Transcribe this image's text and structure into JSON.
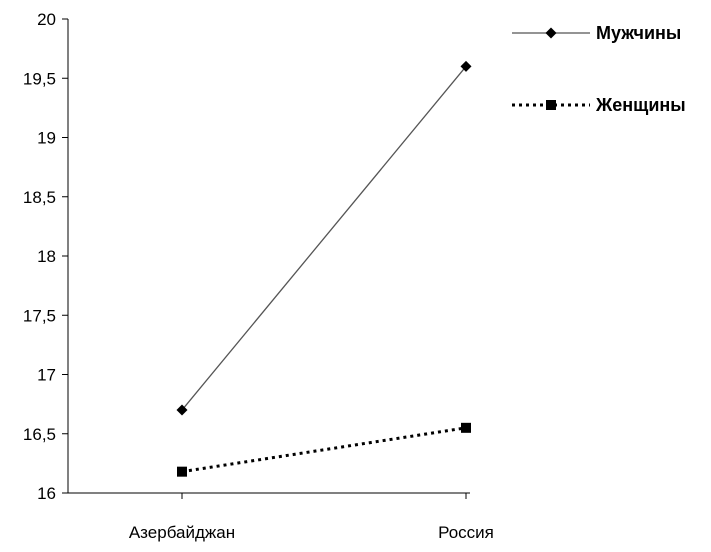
{
  "chart_data": {
    "type": "line",
    "title": "",
    "xlabel": "",
    "ylabel": "",
    "categories": [
      "Азербайджан",
      "Россия"
    ],
    "ylim": [
      16,
      20
    ],
    "ytick_step": 0.5,
    "ytick_labels": [
      "16",
      "16,5",
      "17",
      "17,5",
      "18",
      "18,5",
      "19",
      "19,5",
      "20"
    ],
    "grid": false,
    "legend_position": "top-right",
    "series": [
      {
        "name": "Мужчины",
        "values": [
          16.7,
          19.6
        ],
        "line_style": "solid",
        "marker": "diamond",
        "line_color": "#555555",
        "marker_color": "#000000"
      },
      {
        "name": "Женщины",
        "values": [
          16.18,
          16.55
        ],
        "line_style": "dotted",
        "marker": "square",
        "line_color": "#000000",
        "marker_color": "#000000"
      }
    ]
  }
}
